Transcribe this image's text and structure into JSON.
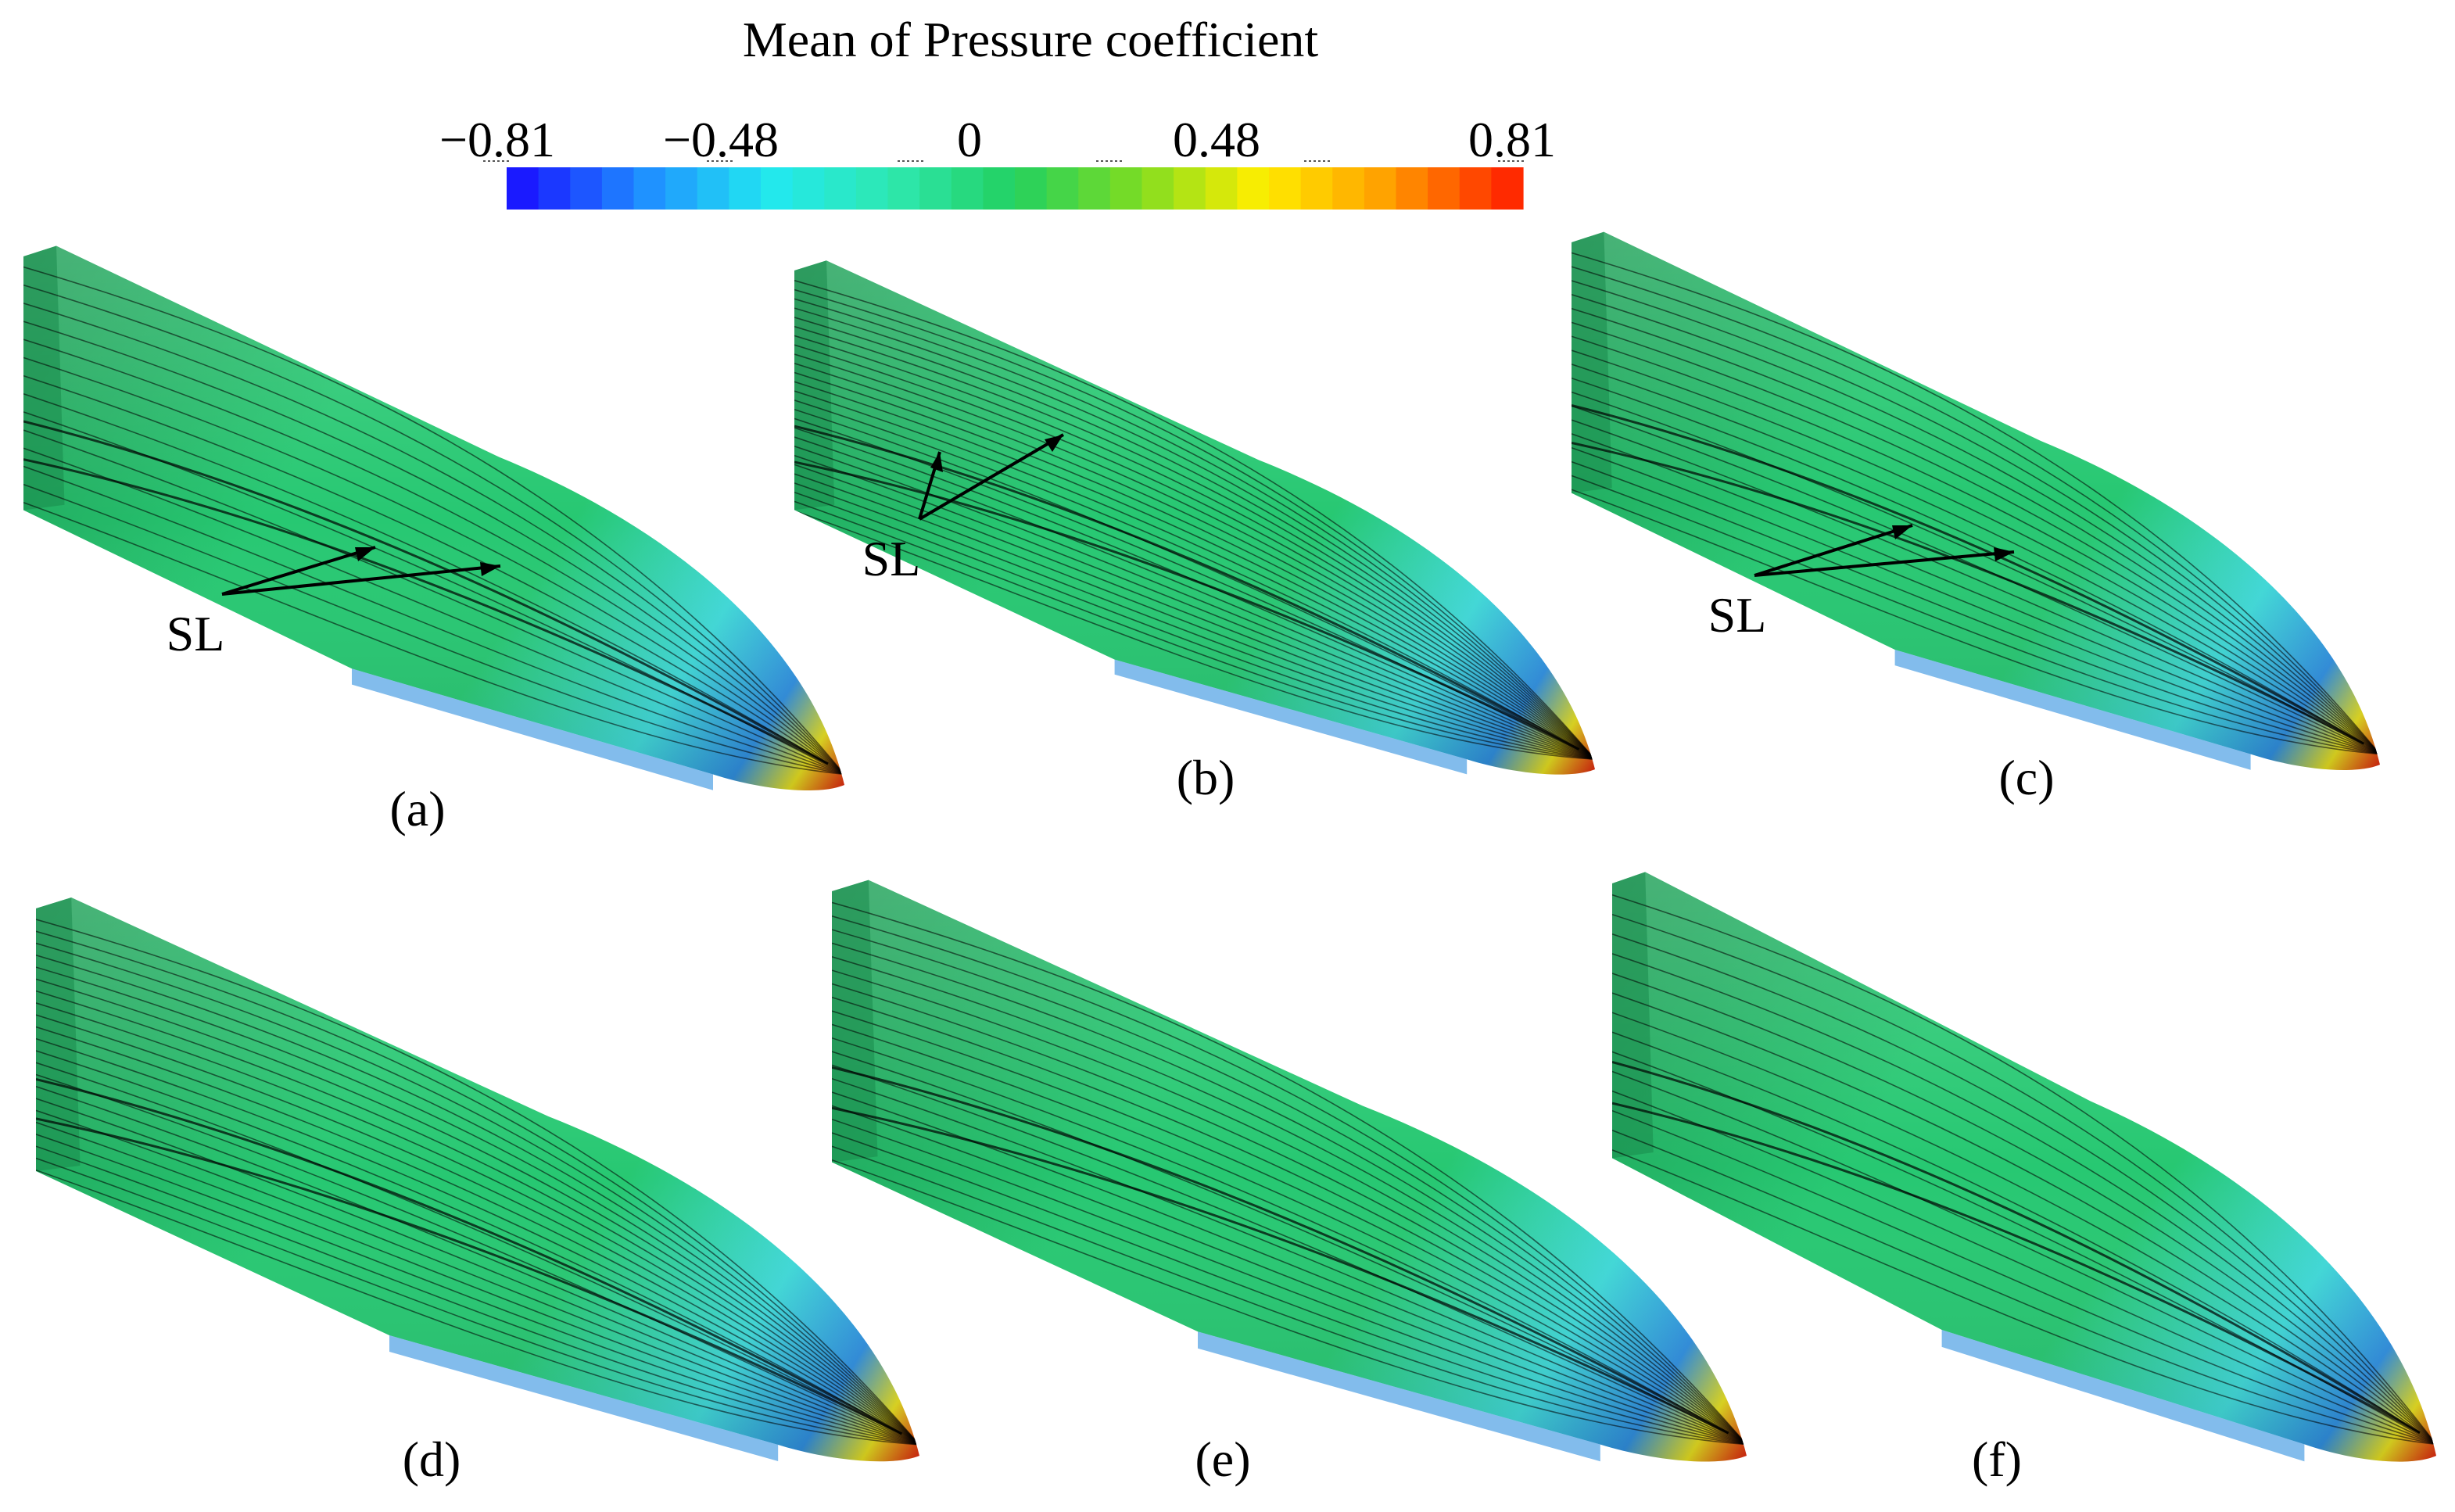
{
  "colorbar": {
    "title": "Mean of Pressure coefficient",
    "tick_labels": [
      "−0.81",
      "−0.48",
      "0",
      "0.48",
      "0.81"
    ],
    "min": -0.81,
    "max": 0.81,
    "stops": [
      "#1a1aff",
      "#1f8fff",
      "#22e8f0",
      "#2ee8b0",
      "#22d060",
      "#7ddc22",
      "#ffee00",
      "#ffa000",
      "#ff2a00"
    ]
  },
  "panels": [
    {
      "label": "(a)",
      "annotation": "SL",
      "density": 14
    },
    {
      "label": "(b)",
      "annotation": "SL",
      "density": 26
    },
    {
      "label": "(c)",
      "annotation": "SL",
      "density": 18
    },
    {
      "label": "(d)",
      "annotation": "",
      "density": 22
    },
    {
      "label": "(e)",
      "annotation": "",
      "density": 20
    },
    {
      "label": "(f)",
      "annotation": "",
      "density": 14
    }
  ],
  "surface_colors": {
    "body": "#27c872",
    "body_dark": "#1f9e57",
    "nose_cool": "#3fd9d8",
    "nose_blue": "#2f8fe0",
    "nose_yellow": "#e8e020",
    "nose_red": "#e02a10",
    "streamline": "#000000"
  }
}
